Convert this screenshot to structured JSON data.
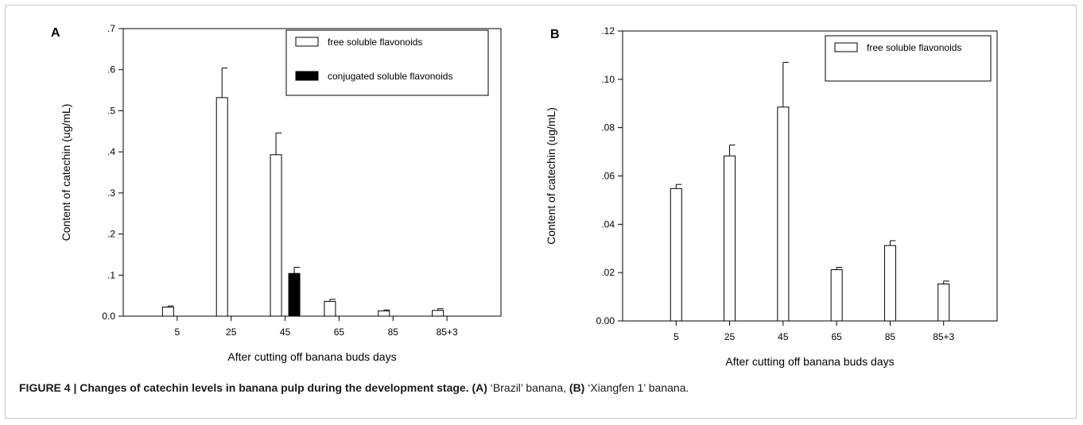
{
  "chart_data": [
    {
      "panel_label": "A",
      "type": "bar",
      "categories": [
        "5",
        "25",
        "45",
        "65",
        "85",
        "85+3"
      ],
      "series": [
        {
          "name": "free soluble flavonoids",
          "fill": "#ffffff",
          "values": [
            0.022,
            0.532,
            0.393,
            0.036,
            0.013,
            0.014
          ],
          "errors": [
            0.003,
            0.072,
            0.053,
            0.005,
            0.002,
            0.004
          ]
        },
        {
          "name": "conjugated soluble flavonoids",
          "fill": "#000000",
          "values": [
            null,
            null,
            0.104,
            null,
            null,
            null
          ],
          "errors": [
            null,
            null,
            0.015,
            null,
            null,
            null
          ]
        }
      ],
      "xlabel": "After cutting off banana buds days",
      "ylabel": "Content of catechin (ug/mL)",
      "ylim": [
        0,
        0.7
      ],
      "yticks": [
        0,
        0.1,
        0.2,
        0.3,
        0.4,
        0.5,
        0.6,
        0.7
      ],
      "ytick_labels": [
        "0.0",
        ".1",
        ".2",
        ".3",
        ".4",
        ".5",
        ".6",
        ".7"
      ],
      "legend_position": "top-right",
      "grid": false
    },
    {
      "panel_label": "B",
      "type": "bar",
      "categories": [
        "5",
        "25",
        "45",
        "65",
        "85",
        "85+3"
      ],
      "series": [
        {
          "name": "free soluble flavonoids",
          "fill": "#ffffff",
          "values": [
            0.0548,
            0.0683,
            0.0885,
            0.0212,
            0.0312,
            0.0153
          ],
          "errors": [
            0.0017,
            0.0045,
            0.0185,
            0.001,
            0.002,
            0.0012
          ]
        }
      ],
      "xlabel": "After cutting off banana buds days",
      "ylabel": "Content of catechin (ug/mL)",
      "ylim": [
        0,
        0.12
      ],
      "yticks": [
        0,
        0.02,
        0.04,
        0.06,
        0.08,
        0.1,
        0.12
      ],
      "ytick_labels": [
        "0.00",
        ".02",
        ".04",
        ".06",
        ".08",
        ".10",
        ".12"
      ],
      "legend_position": "top-right",
      "grid": false
    }
  ],
  "caption": {
    "bold_part": "FIGURE 4 | Changes of catechin levels in banana pulp during the development stage.",
    "label_a": "(A)",
    "text_a": "‘Brazil’ banana,",
    "label_b": "(B)",
    "text_b": "‘Xiangfen 1’ banana."
  }
}
